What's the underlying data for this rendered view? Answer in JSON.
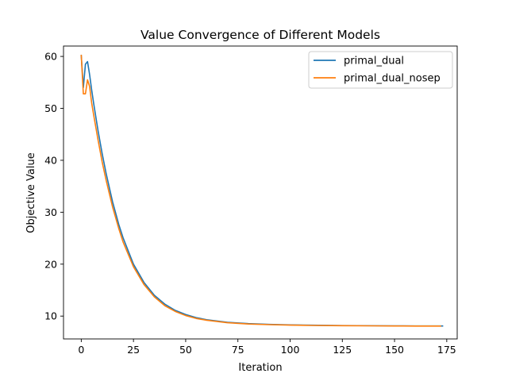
{
  "chart_data": {
    "type": "line",
    "title": "Value Convergence of Different Models",
    "xlabel": "Iteration",
    "ylabel": "Objective Value",
    "xlim": [
      -8.5,
      180
    ],
    "ylim": [
      5.6,
      62.0
    ],
    "xticks": [
      0,
      25,
      50,
      75,
      100,
      125,
      150,
      175
    ],
    "yticks": [
      10,
      20,
      30,
      40,
      50,
      60
    ],
    "grid": false,
    "legend_position": "top-right",
    "series": [
      {
        "name": "primal_dual",
        "color": "#1f77b4",
        "x": [
          0,
          1,
          2,
          3,
          4,
          5,
          6,
          8,
          10,
          12,
          15,
          18,
          20,
          25,
          30,
          35,
          40,
          45,
          50,
          55,
          60,
          70,
          80,
          90,
          100,
          110,
          125,
          140,
          150,
          160,
          173
        ],
        "y": [
          60.2,
          54.0,
          58.5,
          59.0,
          56.5,
          53.5,
          50.8,
          45.8,
          41.3,
          37.3,
          32.0,
          27.6,
          25.1,
          20.0,
          16.5,
          14.0,
          12.3,
          11.1,
          10.3,
          9.7,
          9.3,
          8.8,
          8.55,
          8.4,
          8.3,
          8.25,
          8.18,
          8.14,
          8.12,
          8.1,
          8.1
        ]
      },
      {
        "name": "primal_dual_nosep",
        "color": "#ff7f0e",
        "x": [
          0,
          1,
          2,
          3,
          4,
          5,
          6,
          8,
          10,
          12,
          15,
          18,
          20,
          25,
          30,
          35,
          40,
          45,
          50,
          55,
          60,
          70,
          80,
          90,
          100,
          110,
          125,
          140,
          150,
          160,
          172
        ],
        "y": [
          60.2,
          52.8,
          52.8,
          55.5,
          54.2,
          51.0,
          48.6,
          44.0,
          39.7,
          36.0,
          31.0,
          26.8,
          24.3,
          19.5,
          16.1,
          13.7,
          12.0,
          10.9,
          10.1,
          9.55,
          9.2,
          8.72,
          8.48,
          8.35,
          8.26,
          8.2,
          8.15,
          8.12,
          8.1,
          8.08,
          8.08
        ]
      }
    ]
  }
}
